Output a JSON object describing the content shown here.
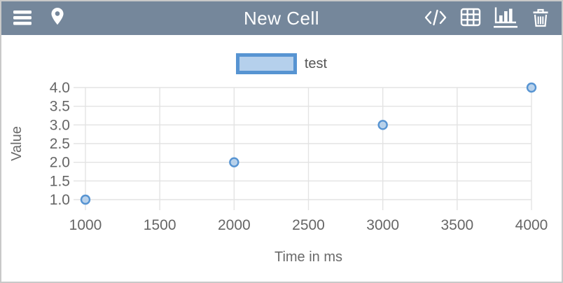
{
  "header": {
    "title": "New Cell",
    "bg_color": "#75879B",
    "icon_color": "#FFFFFF",
    "left_icons": [
      "menu",
      "location-pin"
    ],
    "right_icons": [
      "code",
      "table",
      "bar-chart",
      "trash"
    ],
    "active_icon": "bar-chart"
  },
  "chart_data": {
    "type": "scatter",
    "series": [
      {
        "name": "test",
        "x": [
          1000,
          2000,
          3000,
          4000
        ],
        "y": [
          1,
          2,
          3,
          4
        ]
      }
    ],
    "title": "",
    "xlabel": "Time in ms",
    "ylabel": "Value",
    "xlim": [
      1000,
      4000
    ],
    "ylim": [
      1.0,
      4.0
    ],
    "x_ticks": [
      "1000",
      "1500",
      "2000",
      "2500",
      "3000",
      "3500",
      "4000"
    ],
    "x_tick_values": [
      1000,
      1500,
      2000,
      2500,
      3000,
      3500,
      4000
    ],
    "y_ticks": [
      "1.0",
      "1.5",
      "2.0",
      "2.5",
      "3.0",
      "3.5",
      "4.0"
    ],
    "y_tick_values": [
      1.0,
      1.5,
      2.0,
      2.5,
      3.0,
      3.5,
      4.0
    ],
    "grid": true,
    "legend_position": "top-center",
    "colors": {
      "point_stroke": "#5794D2",
      "point_fill": "#AECBE9",
      "legend_border": "#5794D2",
      "legend_fill": "#B5D0EC",
      "grid_line": "#E3E3E3",
      "tick_label": "#666666",
      "axis_title": "#6A6A6A"
    }
  }
}
